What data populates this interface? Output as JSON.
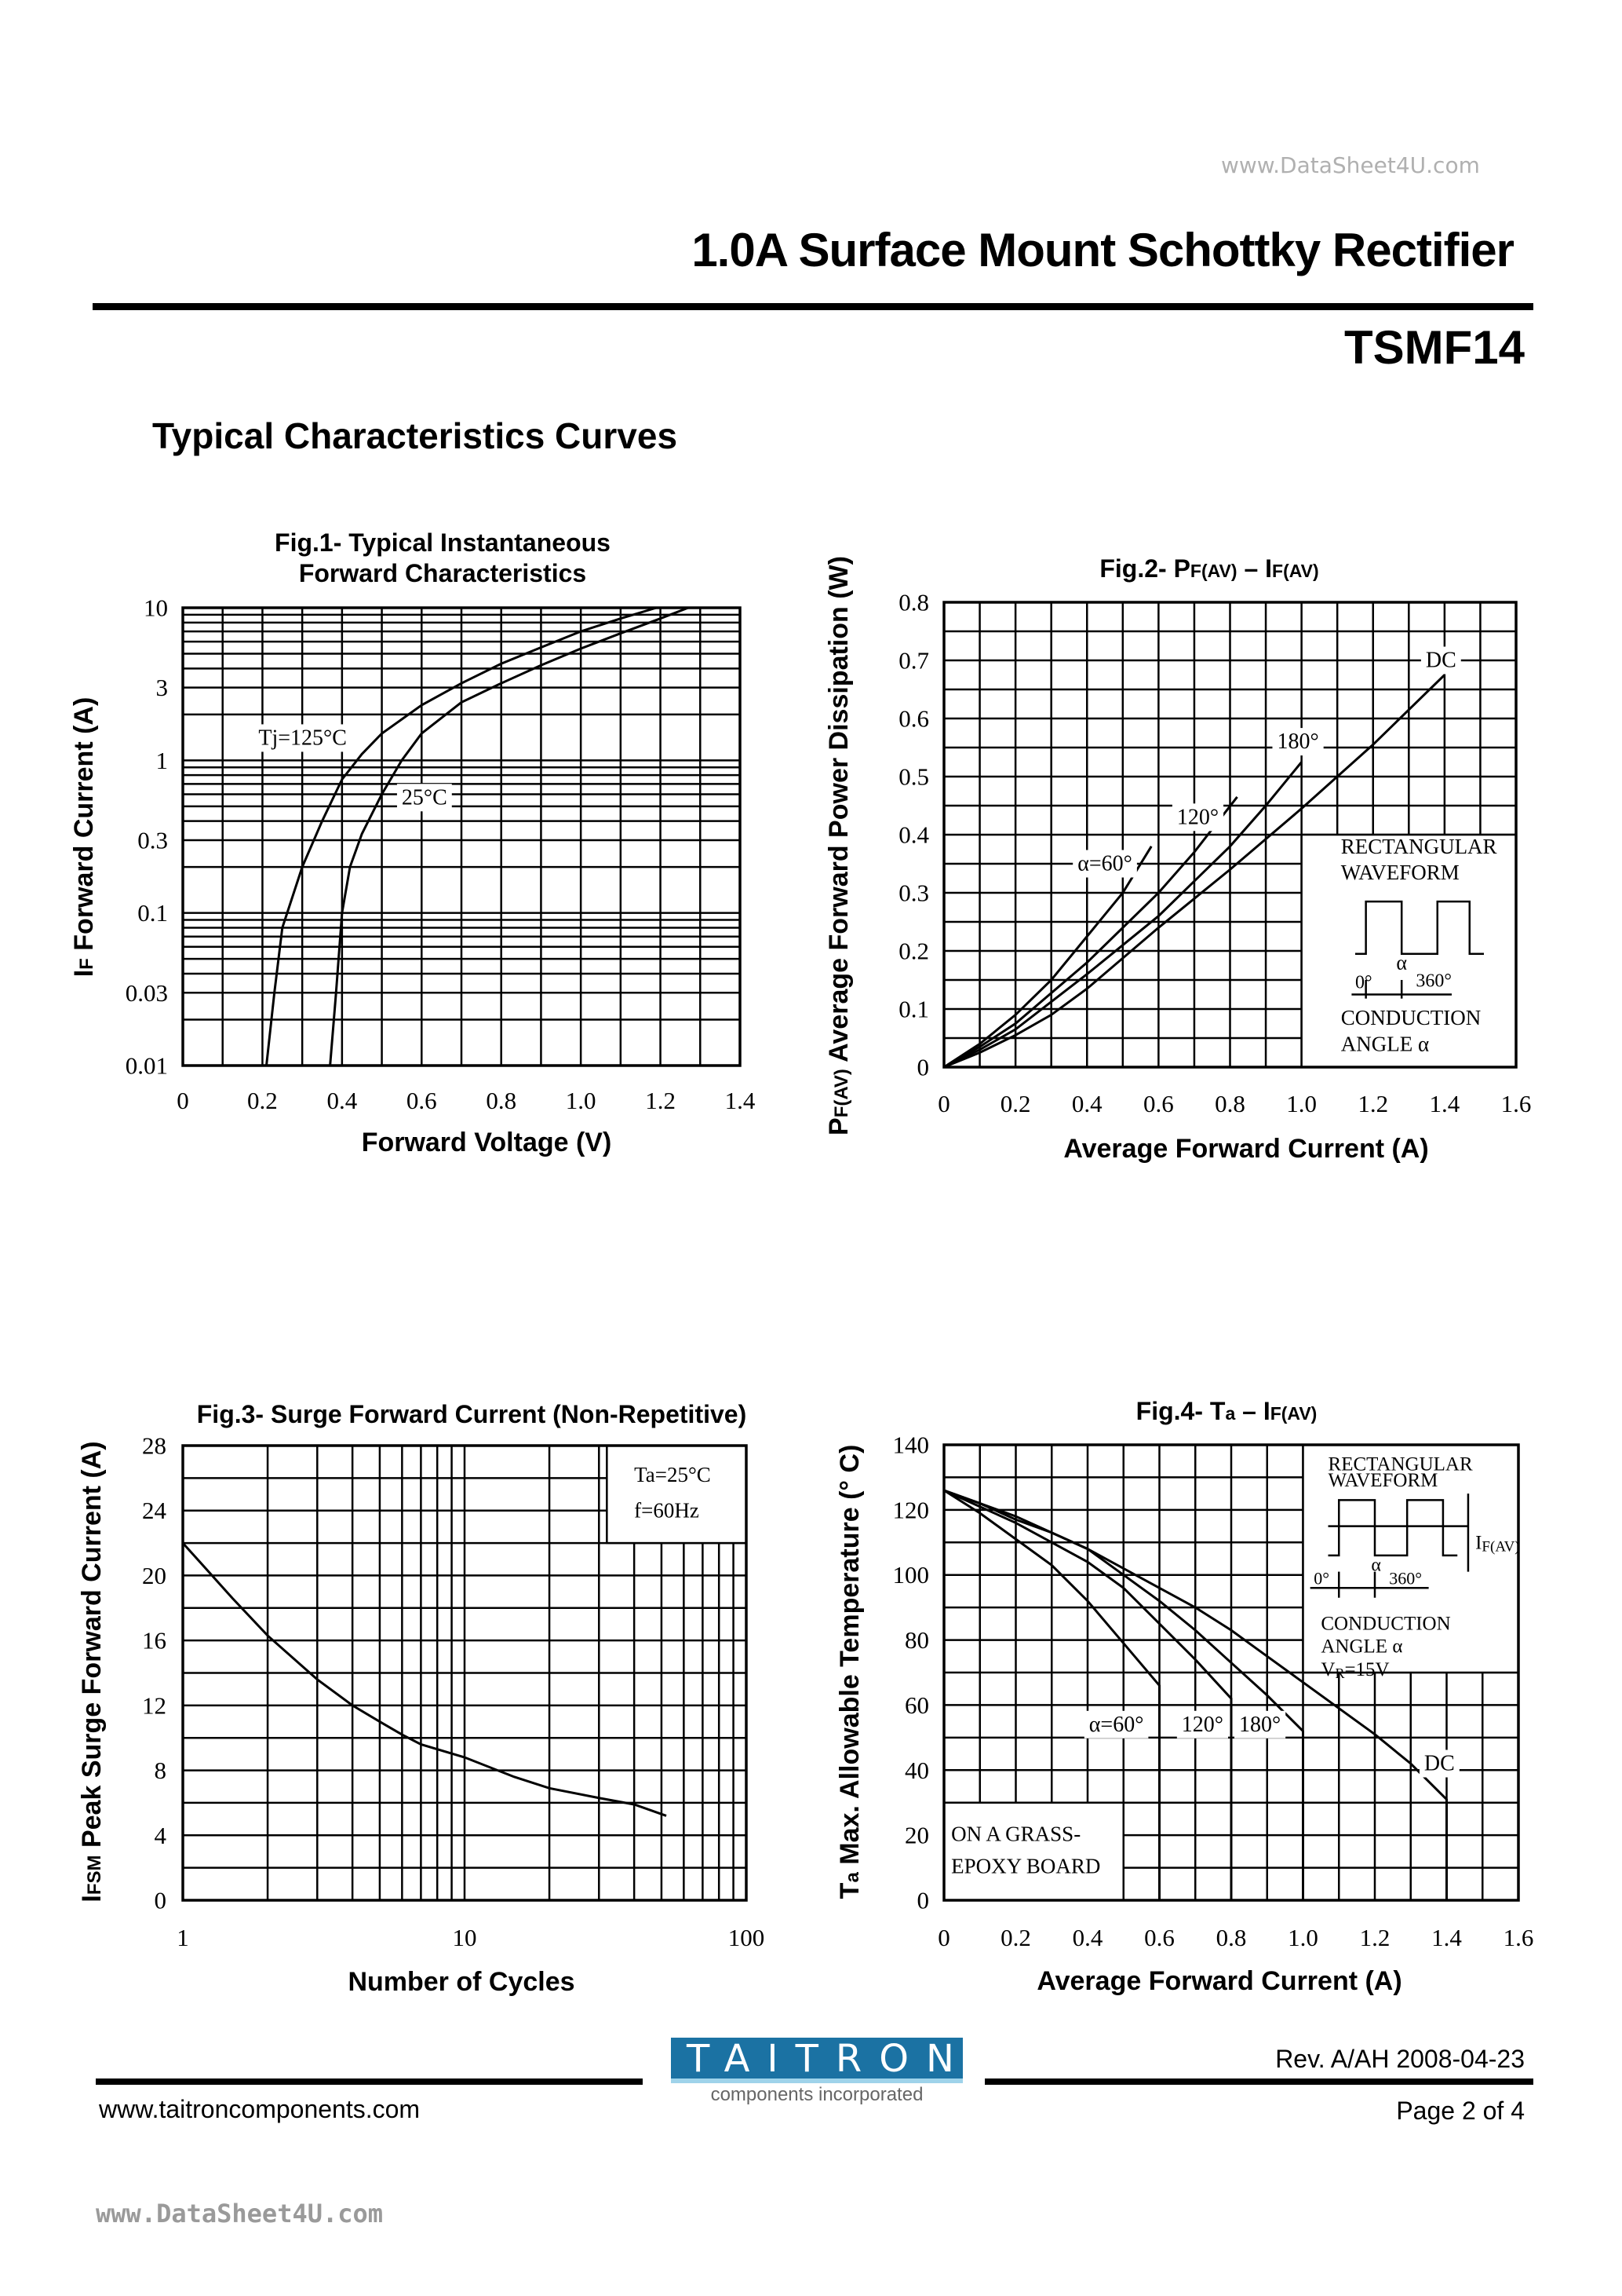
{
  "header": {
    "watermark": "www.DataSheet4U.com",
    "title": "1.0A Surface Mount Schottky Rectifier",
    "part_number": "TSMF14",
    "section_title": "Typical Characteristics Curves"
  },
  "footer": {
    "logo_text": "TAITRON",
    "logo_subtitle": "components incorporated",
    "logo_color": "#1b72a3",
    "revision": "Rev. A/AH 2008-04-23",
    "website": "www.taitroncomponents.com",
    "page": "Page 2 of 4",
    "watermark": "www.DataSheet4U.com"
  },
  "chart_data": [
    {
      "type": "line",
      "title": [
        [
          "Fig.1- Typical Instantaneous"
        ],
        [
          "Forward Characteristics"
        ]
      ],
      "xlabel": [
        "Forward Voltage (V)"
      ],
      "ylabel": [
        "I",
        "F",
        " Forward Current (A)"
      ],
      "xscale": "linear",
      "yscale": "log",
      "xlim": [
        0,
        1.4
      ],
      "ylim": [
        0.01,
        10
      ],
      "xticks": [
        0,
        0.2,
        0.4,
        0.6,
        0.8,
        1.0,
        1.2,
        1.4
      ],
      "xtick_labels": [
        "0",
        "0.2",
        "0.4",
        "0.6",
        "0.8",
        "1.0",
        "1.2",
        "1.4"
      ],
      "yticks": [
        10,
        3,
        1,
        0.3,
        0.1,
        0.03,
        0.01
      ],
      "ytick_labels": [
        "10",
        "3",
        "1",
        "0.3",
        "0.1",
        "0.03",
        "0.01"
      ],
      "grid": true,
      "series": [
        {
          "name": "Tj=125°C",
          "x": [
            0.21,
            0.23,
            0.25,
            0.3,
            0.35,
            0.4,
            0.45,
            0.5,
            0.6,
            0.7,
            0.8,
            0.9,
            1.0,
            1.1,
            1.19
          ],
          "y": [
            0.01,
            0.03,
            0.08,
            0.2,
            0.4,
            0.75,
            1.1,
            1.5,
            2.3,
            3.2,
            4.3,
            5.5,
            7.0,
            8.5,
            10
          ]
        },
        {
          "name": "25°C",
          "x": [
            0.37,
            0.385,
            0.4,
            0.42,
            0.45,
            0.5,
            0.55,
            0.6,
            0.7,
            0.8,
            0.9,
            1.0,
            1.1,
            1.2,
            1.27
          ],
          "y": [
            0.01,
            0.03,
            0.1,
            0.2,
            0.33,
            0.6,
            1.0,
            1.5,
            2.4,
            3.2,
            4.2,
            5.4,
            6.8,
            8.5,
            10
          ]
        }
      ],
      "annotations": []
    },
    {
      "type": "line",
      "title": [
        [
          "Fig.2- P",
          "F(AV)",
          " – I",
          "F(AV)"
        ]
      ],
      "xlabel": [
        "Average Forward Current (A)"
      ],
      "ylabel": [
        "P",
        "F(AV)",
        " Average Forward Power Dissipation (W)"
      ],
      "xscale": "linear",
      "yscale": "linear",
      "xlim": [
        0,
        1.6
      ],
      "ylim": [
        0,
        0.8
      ],
      "xticks": [
        0,
        0.2,
        0.4,
        0.6,
        0.8,
        1.0,
        1.2,
        1.4,
        1.6
      ],
      "xtick_labels": [
        "0",
        "0.2",
        "0.4",
        "0.6",
        "0.8",
        "1.0",
        "1.2",
        "1.4",
        "1.6"
      ],
      "yticks": [
        0,
        0.1,
        0.2,
        0.3,
        0.4,
        0.5,
        0.6,
        0.7,
        0.8
      ],
      "ytick_labels": [
        "0",
        "0.1",
        "0.2",
        "0.3",
        "0.4",
        "0.5",
        "0.6",
        "0.7",
        "0.8"
      ],
      "grid": true,
      "series": [
        {
          "name": "α=60°",
          "x": [
            0,
            0.1,
            0.2,
            0.3,
            0.4,
            0.5,
            0.58
          ],
          "y": [
            0,
            0.04,
            0.09,
            0.15,
            0.225,
            0.3,
            0.38
          ]
        },
        {
          "name": "120°",
          "x": [
            0,
            0.1,
            0.2,
            0.4,
            0.6,
            0.7,
            0.82
          ],
          "y": [
            0,
            0.035,
            0.075,
            0.18,
            0.3,
            0.37,
            0.465
          ]
        },
        {
          "name": "180°",
          "x": [
            0,
            0.1,
            0.2,
            0.4,
            0.6,
            0.8,
            0.9,
            1.0
          ],
          "y": [
            0,
            0.03,
            0.065,
            0.16,
            0.26,
            0.38,
            0.45,
            0.525
          ]
        },
        {
          "name": "DC",
          "x": [
            0,
            0.1,
            0.2,
            0.3,
            0.4,
            0.6,
            0.8,
            1.0,
            1.2,
            1.4
          ],
          "y": [
            0,
            0.025,
            0.055,
            0.09,
            0.135,
            0.24,
            0.34,
            0.445,
            0.555,
            0.675
          ]
        }
      ],
      "annotations": [
        "RECTANGULAR",
        "WAVEFORM",
        "CONDUCTION",
        "ANGLE α",
        "0°",
        "α",
        "360°"
      ]
    },
    {
      "type": "line",
      "title": [
        [
          "Fig.3- Surge Forward Current (Non-Repetitive)"
        ]
      ],
      "xlabel": [
        "Number of Cycles"
      ],
      "ylabel": [
        "I",
        "FSM",
        " Peak Surge Forward Current (A)"
      ],
      "xscale": "log",
      "yscale": "linear",
      "xlim": [
        1,
        100
      ],
      "ylim": [
        0,
        28
      ],
      "xticks": [
        1,
        10,
        100
      ],
      "xtick_labels": [
        "1",
        "10",
        "100"
      ],
      "yticks": [
        0,
        4,
        8,
        12,
        16,
        20,
        24,
        28
      ],
      "ytick_labels": [
        "0",
        "4",
        "8",
        "12",
        "16",
        "20",
        "24",
        "28"
      ],
      "grid": true,
      "series": [
        {
          "x": [
            1,
            1.5,
            2,
            3,
            4,
            5,
            6,
            7,
            10,
            15,
            20,
            30,
            40,
            52
          ],
          "y": [
            22,
            18.6,
            16.3,
            13.6,
            12.0,
            11.0,
            10.2,
            9.6,
            8.8,
            7.6,
            6.9,
            6.3,
            5.9,
            5.2
          ]
        }
      ],
      "annotations": [
        "Ta=25°C",
        "f=60Hz"
      ]
    },
    {
      "type": "line",
      "title": [
        [
          "Fig.4- T",
          "a",
          " – I",
          "F(AV)"
        ]
      ],
      "xlabel": [
        "Average Forward Current (A)"
      ],
      "ylabel": [
        "T",
        "a",
        " Max. Allowable Temperature (° C)"
      ],
      "xscale": "linear",
      "yscale": "linear",
      "xlim": [
        0,
        1.6
      ],
      "ylim": [
        0,
        140
      ],
      "xticks": [
        0,
        0.2,
        0.4,
        0.6,
        0.8,
        1.0,
        1.2,
        1.4,
        1.6
      ],
      "xtick_labels": [
        "0",
        "0.2",
        "0.4",
        "0.6",
        "0.8",
        "1.0",
        "1.2",
        "1.4",
        "1.6"
      ],
      "yticks": [
        0,
        20,
        40,
        60,
        80,
        100,
        120,
        140
      ],
      "ytick_labels": [
        "0",
        "20",
        "40",
        "60",
        "80",
        "100",
        "120",
        "140"
      ],
      "grid": true,
      "drop_to_axis": true,
      "series": [
        {
          "name": "α=60°",
          "x": [
            0,
            0.1,
            0.2,
            0.3,
            0.4,
            0.5,
            0.6
          ],
          "y": [
            126,
            119,
            111,
            103,
            92,
            79,
            66
          ]
        },
        {
          "name": "120°",
          "x": [
            0,
            0.1,
            0.2,
            0.3,
            0.4,
            0.5,
            0.6,
            0.7,
            0.8
          ],
          "y": [
            126,
            121,
            116,
            110,
            104,
            96,
            85,
            74,
            62
          ]
        },
        {
          "name": "180°",
          "x": [
            0,
            0.1,
            0.2,
            0.3,
            0.4,
            0.5,
            0.6,
            0.7,
            0.8,
            0.9,
            1.0
          ],
          "y": [
            126,
            122,
            117,
            113,
            108,
            100,
            92,
            83,
            73,
            63,
            52
          ]
        },
        {
          "name": "DC",
          "x": [
            0,
            0.2,
            0.4,
            0.6,
            0.7,
            0.8,
            0.9,
            1.0,
            1.1,
            1.2,
            1.3,
            1.4
          ],
          "y": [
            126,
            118,
            108,
            96,
            90,
            83,
            75,
            67,
            59,
            51,
            42,
            31
          ]
        }
      ],
      "annotations": [
        "RECTANGULAR",
        "WAVEFORM",
        "I",
        "F(AV)",
        "0°",
        "α",
        "360°",
        "CONDUCTION",
        "ANGLE α",
        "V",
        "R",
        "=15V",
        "ON A GRASS-",
        "EPOXY BOARD"
      ]
    }
  ]
}
